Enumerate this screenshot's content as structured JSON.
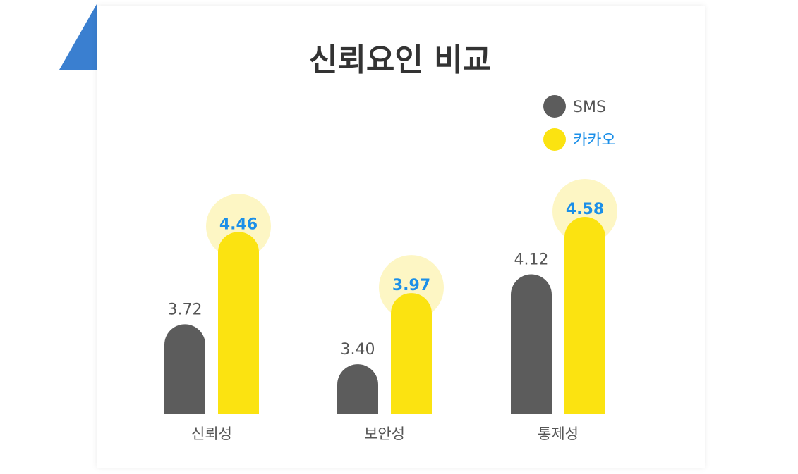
{
  "colors": {
    "sms": "#5c5c5c",
    "kakao": "#fbe311",
    "kakao_glow": "#fdf6c4",
    "kakao_text": "#1b8fe8",
    "sms_value_text": "#555555",
    "sms_legend_text": "#555555",
    "accent_triangle": "#3a7fd0"
  },
  "chart_data": {
    "type": "bar",
    "title": "신뢰요인 비교",
    "categories": [
      "신뢰성",
      "보안성",
      "통제성"
    ],
    "series": [
      {
        "name": "SMS",
        "values": [
          3.72,
          3.4,
          4.12
        ],
        "labels": [
          "3.72",
          "3.40",
          "4.12"
        ]
      },
      {
        "name": "카카오",
        "values": [
          4.46,
          3.97,
          4.58
        ],
        "labels": [
          "4.46",
          "3.97",
          "4.58"
        ]
      }
    ],
    "ylim": [
      2.5,
      5.0
    ],
    "legend": "top-right",
    "grid": false
  }
}
